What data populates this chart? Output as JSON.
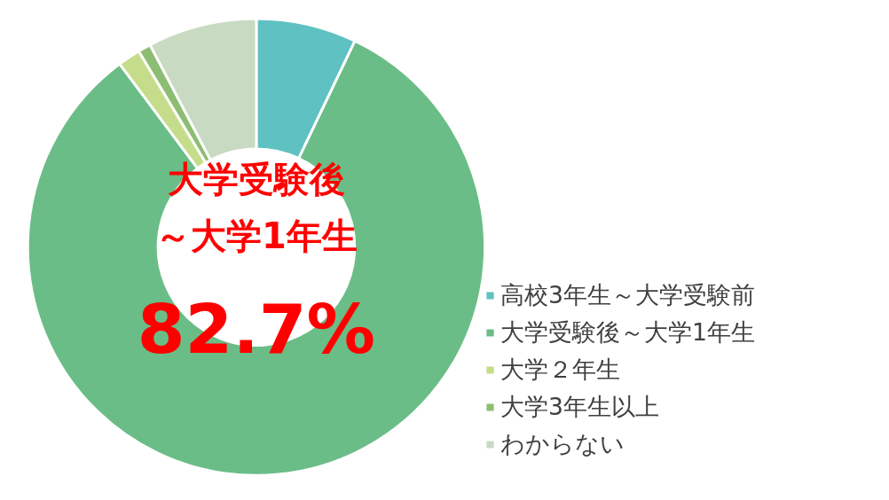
{
  "chart_data": {
    "type": "donut",
    "categories": [
      "高校3年生～大学受験前",
      "大学受験後～大学1年生",
      "大学２年生",
      "大学3年生以上",
      "わからない"
    ],
    "values": [
      7.1,
      82.7,
      1.6,
      0.9,
      7.7
    ],
    "colors": [
      "#5fc1c1",
      "#6abd86",
      "#c5dd8a",
      "#8dbd73",
      "#c8dbc2"
    ],
    "annotations": [
      "大学受験後",
      "～大学1年生",
      "82.7%"
    ],
    "legend": "right"
  }
}
